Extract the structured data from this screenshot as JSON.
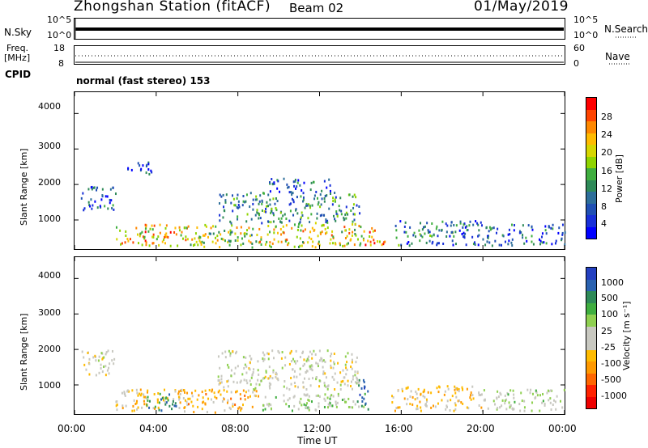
{
  "header": {
    "station": "Zhongshan Station (fitACF)",
    "beam": "Beam 02",
    "date": "01/May/2019",
    "cpid_label": "CPID",
    "cpid_text": "normal (fast stereo) 153"
  },
  "top_panel": {
    "left_label": "N.Sky",
    "right_label": "N.Search",
    "left_ticks": [
      "10^5",
      "10^0"
    ],
    "right_ticks": [
      "10^5",
      "10^0"
    ]
  },
  "freq_panel": {
    "left_label_line1": "Freq.",
    "left_label_line2": "[MHz]",
    "right_label": "Nave",
    "left_ticks": [
      "18",
      "8"
    ],
    "right_ticks": [
      "60",
      "0"
    ]
  },
  "x_axis": {
    "label": "Time UT",
    "ticks": [
      "00:00",
      "04:00",
      "08:00",
      "12:00",
      "16:00",
      "20:00",
      "00:00"
    ]
  },
  "power_panel": {
    "ylabel": "Slant Range [km]",
    "yticks": [
      "4000",
      "3000",
      "2000",
      "1000"
    ],
    "cbar_label": "Power [dB]",
    "cbar_ticks": [
      "28",
      "24",
      "20",
      "16",
      "12",
      "8",
      "4"
    ],
    "cbar_colors": [
      "#ff0000",
      "#ff4400",
      "#ff8800",
      "#ffbb00",
      "#d6d600",
      "#8fd400",
      "#3fae3f",
      "#2e8a58",
      "#2d6e9a",
      "#2050b4",
      "#1830d8",
      "#0000ff"
    ]
  },
  "velocity_panel": {
    "ylabel": "Slant Range [km]",
    "yticks": [
      "4000",
      "3000",
      "2000",
      "1000"
    ],
    "cbar_label": "Velocity [m s⁻¹]",
    "cbar_ticks": [
      "1000",
      "500",
      "100",
      "25",
      "-25",
      "-100",
      "-500",
      "-1000"
    ],
    "cbar_colors": [
      "#2340c0",
      "#2a62b0",
      "#2e8a58",
      "#3fae3f",
      "#8fd050",
      "#c8c8c0",
      "#c8c8c0",
      "#ffbb00",
      "#ff9900",
      "#ff6600",
      "#ff2200",
      "#ee0000"
    ]
  },
  "chart_data": [
    {
      "type": "heatmap",
      "title": "Power",
      "xlabel": "Time UT",
      "ylabel": "Slant Range [km]",
      "xlim": [
        0,
        24
      ],
      "ylim": [
        180,
        4600
      ],
      "colorbar": "Power [dB]",
      "clim": [
        0,
        32
      ],
      "blobs": [
        {
          "t": [
            2.0,
            5.5
          ],
          "r": [
            300,
            900
          ],
          "v": 22
        },
        {
          "t": [
            5.0,
            9.0
          ],
          "r": [
            250,
            900
          ],
          "v": 18
        },
        {
          "t": [
            9.0,
            14.2
          ],
          "r": [
            250,
            900
          ],
          "v": 20
        },
        {
          "t": [
            14.2,
            15.2
          ],
          "r": [
            250,
            800
          ],
          "v": 24
        },
        {
          "t": [
            7.0,
            14.0
          ],
          "r": [
            900,
            1800
          ],
          "v": 11
        },
        {
          "t": [
            9.5,
            12.5
          ],
          "r": [
            1800,
            2200
          ],
          "v": 8
        },
        {
          "t": [
            0.3,
            2.0
          ],
          "r": [
            1300,
            2000
          ],
          "v": 6
        },
        {
          "t": [
            2.5,
            3.8
          ],
          "r": [
            2300,
            2700
          ],
          "v": 5
        },
        {
          "t": [
            15.5,
            20.0
          ],
          "r": [
            300,
            1000
          ],
          "v": 9
        },
        {
          "t": [
            20.0,
            24.0
          ],
          "r": [
            300,
            900
          ],
          "v": 8
        }
      ]
    },
    {
      "type": "heatmap",
      "title": "Velocity",
      "xlabel": "Time UT",
      "ylabel": "Slant Range [km]",
      "xlim": [
        0,
        24
      ],
      "ylim": [
        180,
        4600
      ],
      "colorbar": "Velocity [m s⁻¹]",
      "clim": [
        -1000,
        1000
      ],
      "blobs": [
        {
          "t": [
            2.0,
            5.5
          ],
          "r": [
            300,
            900
          ],
          "v": -200
        },
        {
          "t": [
            3.5,
            5.0
          ],
          "r": [
            300,
            800
          ],
          "v": 600
        },
        {
          "t": [
            5.0,
            9.0
          ],
          "r": [
            250,
            900
          ],
          "v": -300
        },
        {
          "t": [
            9.0,
            14.2
          ],
          "r": [
            300,
            800
          ],
          "v": 150
        },
        {
          "t": [
            13.8,
            14.4
          ],
          "r": [
            300,
            1200
          ],
          "v": 800
        },
        {
          "t": [
            7.0,
            14.0
          ],
          "r": [
            900,
            2000
          ],
          "v": 0
        },
        {
          "t": [
            0.3,
            2.0
          ],
          "r": [
            1300,
            2000
          ],
          "v": 0
        },
        {
          "t": [
            15.5,
            20.0
          ],
          "r": [
            300,
            1000
          ],
          "v": -200
        },
        {
          "t": [
            20.0,
            24.0
          ],
          "r": [
            300,
            900
          ],
          "v": 100
        }
      ]
    }
  ]
}
